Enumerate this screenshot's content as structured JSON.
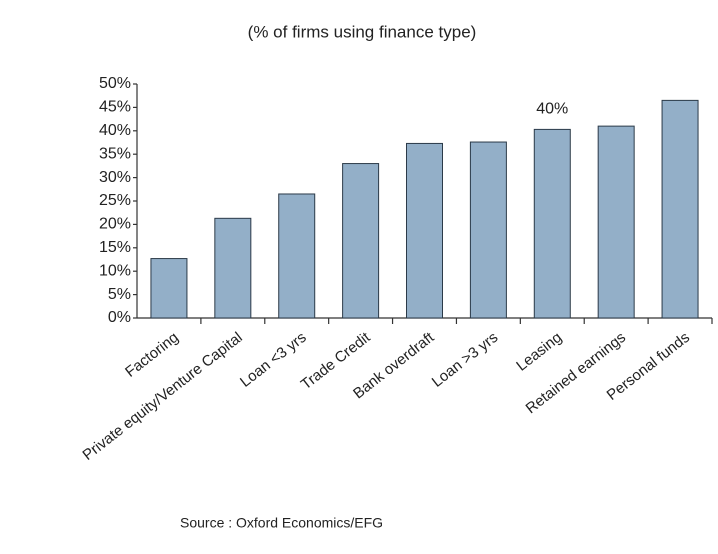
{
  "chart_data": {
    "type": "bar",
    "title": "(% of firms using finance type)",
    "source": "Source : Oxford Economics/EFG",
    "categories": [
      "Factoring",
      "Private equity/Venture Capital",
      "Loan <3 yrs",
      "Trade Credit",
      "Bank overdraft",
      "Loan >3 yrs",
      "Leasing",
      "Retained earnings",
      "Personal funds"
    ],
    "values": [
      12.7,
      21.3,
      26.5,
      33,
      37.3,
      37.6,
      40.3,
      41,
      46.5
    ],
    "value_labels": [
      null,
      null,
      null,
      null,
      null,
      null,
      "40%",
      null,
      null
    ],
    "color": "#93afc8",
    "ylim": [
      0,
      50
    ],
    "yticks": [
      {
        "value": 0,
        "label": "0%"
      },
      {
        "value": 5,
        "label": "5%"
      },
      {
        "value": 10,
        "label": "10%"
      },
      {
        "value": 15,
        "label": "15%"
      },
      {
        "value": 20,
        "label": "20%"
      },
      {
        "value": 25,
        "label": "25%"
      },
      {
        "value": 30,
        "label": "30%"
      },
      {
        "value": 35,
        "label": "35%"
      },
      {
        "value": 40,
        "label": "40%"
      },
      {
        "value": 45,
        "label": "45%"
      },
      {
        "value": 50,
        "label": "50%"
      }
    ],
    "grid": false
  }
}
